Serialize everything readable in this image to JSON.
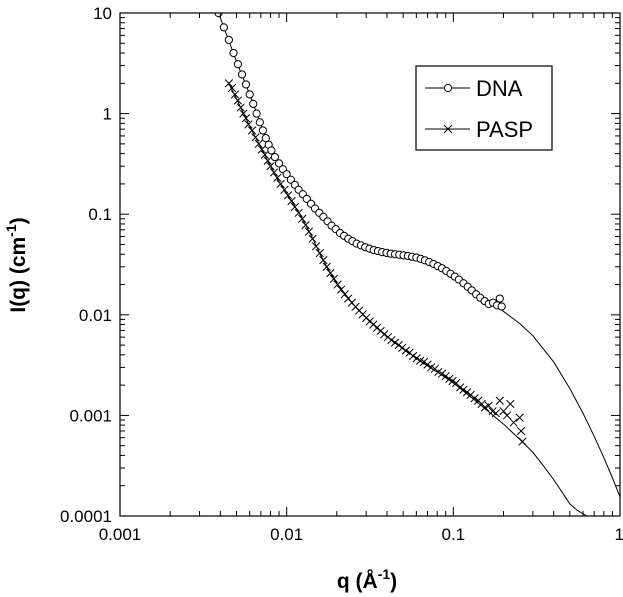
{
  "chart_data": {
    "type": "scatter",
    "title": "",
    "xlabel_base": "q  (Å",
    "xlabel_exp": "-1",
    "xlabel_end": ")",
    "ylabel_base": "I(q)  (cm",
    "ylabel_exp": "-1",
    "ylabel_end": ")",
    "xscale": "log",
    "yscale": "log",
    "xlim": [
      0.001,
      1
    ],
    "ylim": [
      0.0001,
      10
    ],
    "x_ticks": [
      {
        "value": 0.001,
        "label": "0.001"
      },
      {
        "value": 0.01,
        "label": "0.01"
      },
      {
        "value": 0.1,
        "label": "0.1"
      },
      {
        "value": 1,
        "label": "1"
      }
    ],
    "y_ticks": [
      {
        "value": 0.0001,
        "label": "0.0001"
      },
      {
        "value": 0.001,
        "label": "0.001"
      },
      {
        "value": 0.01,
        "label": "0.01"
      },
      {
        "value": 0.1,
        "label": "0.1"
      },
      {
        "value": 1,
        "label": "1"
      },
      {
        "value": 10,
        "label": "10"
      }
    ],
    "grid": false,
    "legend_position": "top-right",
    "series": [
      {
        "name": "DNA",
        "marker": "circle",
        "points": [
          [
            0.0039,
            10.0
          ],
          [
            0.0042,
            7.2
          ],
          [
            0.0045,
            5.4
          ],
          [
            0.0048,
            4.0
          ],
          [
            0.0051,
            3.1
          ],
          [
            0.0054,
            2.45
          ],
          [
            0.0057,
            1.95
          ],
          [
            0.006,
            1.55
          ],
          [
            0.0063,
            1.25
          ],
          [
            0.0066,
            1.0
          ],
          [
            0.0069,
            0.82
          ],
          [
            0.0072,
            0.68
          ],
          [
            0.0075,
            0.57
          ],
          [
            0.0078,
            0.49
          ],
          [
            0.0081,
            0.43
          ],
          [
            0.0085,
            0.37
          ],
          [
            0.009,
            0.32
          ],
          [
            0.0095,
            0.28
          ],
          [
            0.01,
            0.25
          ],
          [
            0.0106,
            0.22
          ],
          [
            0.0112,
            0.196
          ],
          [
            0.0118,
            0.175
          ],
          [
            0.0125,
            0.158
          ],
          [
            0.0132,
            0.142
          ],
          [
            0.014,
            0.127
          ],
          [
            0.0148,
            0.114
          ],
          [
            0.0157,
            0.103
          ],
          [
            0.0166,
            0.094
          ],
          [
            0.0176,
            0.085
          ],
          [
            0.0186,
            0.077
          ],
          [
            0.0197,
            0.071
          ],
          [
            0.0209,
            0.065
          ],
          [
            0.0221,
            0.061
          ],
          [
            0.0234,
            0.057
          ],
          [
            0.0248,
            0.054
          ],
          [
            0.0263,
            0.051
          ],
          [
            0.0279,
            0.049
          ],
          [
            0.0296,
            0.047
          ],
          [
            0.0314,
            0.0455
          ],
          [
            0.0333,
            0.044
          ],
          [
            0.0353,
            0.043
          ],
          [
            0.0374,
            0.042
          ],
          [
            0.0397,
            0.0413
          ],
          [
            0.0421,
            0.0405
          ],
          [
            0.0447,
            0.04
          ],
          [
            0.0474,
            0.0395
          ],
          [
            0.0503,
            0.039
          ],
          [
            0.0534,
            0.0384
          ],
          [
            0.0566,
            0.0377
          ],
          [
            0.06,
            0.037
          ],
          [
            0.0637,
            0.036
          ],
          [
            0.0675,
            0.0348
          ],
          [
            0.0716,
            0.0335
          ],
          [
            0.076,
            0.032
          ],
          [
            0.0806,
            0.0305
          ],
          [
            0.0855,
            0.029
          ],
          [
            0.0907,
            0.0273
          ],
          [
            0.0962,
            0.0256
          ],
          [
            0.102,
            0.024
          ],
          [
            0.108,
            0.0224
          ],
          [
            0.115,
            0.0206
          ],
          [
            0.122,
            0.019
          ],
          [
            0.129,
            0.0175
          ],
          [
            0.137,
            0.016
          ],
          [
            0.145,
            0.0148
          ],
          [
            0.154,
            0.0137
          ],
          [
            0.163,
            0.0128
          ],
          [
            0.173,
            0.0132
          ],
          [
            0.183,
            0.0124
          ],
          [
            0.19,
            0.0145
          ],
          [
            0.195,
            0.0121
          ]
        ],
        "fit": [
          [
            0.0039,
            10.0
          ],
          [
            0.005,
            3.3
          ],
          [
            0.006,
            1.55
          ],
          [
            0.007,
            0.78
          ],
          [
            0.008,
            0.45
          ],
          [
            0.009,
            0.32
          ],
          [
            0.01,
            0.25
          ],
          [
            0.012,
            0.18
          ],
          [
            0.014,
            0.127
          ],
          [
            0.017,
            0.089
          ],
          [
            0.02,
            0.07
          ],
          [
            0.025,
            0.054
          ],
          [
            0.03,
            0.047
          ],
          [
            0.035,
            0.043
          ],
          [
            0.04,
            0.041
          ],
          [
            0.05,
            0.039
          ],
          [
            0.06,
            0.037
          ],
          [
            0.07,
            0.034
          ],
          [
            0.08,
            0.0307
          ],
          [
            0.1,
            0.0246
          ],
          [
            0.12,
            0.0195
          ],
          [
            0.15,
            0.0145
          ],
          [
            0.18,
            0.0123
          ],
          [
            0.2,
            0.0108
          ],
          [
            0.25,
            0.0082
          ],
          [
            0.3,
            0.0062
          ],
          [
            0.4,
            0.0034
          ],
          [
            0.5,
            0.00185
          ],
          [
            0.6,
            0.00105
          ],
          [
            0.7,
            0.00062
          ],
          [
            0.8,
            0.00038
          ],
          [
            0.9,
            0.00024
          ],
          [
            1.0,
            0.000155
          ]
        ]
      },
      {
        "name": "PASP",
        "marker": "x",
        "points": [
          [
            0.0045,
            2.0
          ],
          [
            0.0047,
            1.8
          ],
          [
            0.0049,
            1.55
          ],
          [
            0.0051,
            1.35
          ],
          [
            0.0053,
            1.15
          ],
          [
            0.0055,
            1.0
          ],
          [
            0.0057,
            0.9
          ],
          [
            0.0059,
            0.78
          ],
          [
            0.0062,
            0.68
          ],
          [
            0.0065,
            0.58
          ],
          [
            0.0068,
            0.5
          ],
          [
            0.0071,
            0.44
          ],
          [
            0.0074,
            0.39
          ],
          [
            0.0077,
            0.34
          ],
          [
            0.008,
            0.3
          ],
          [
            0.0084,
            0.26
          ],
          [
            0.0088,
            0.23
          ],
          [
            0.0092,
            0.2
          ],
          [
            0.0097,
            0.175
          ],
          [
            0.0102,
            0.154
          ],
          [
            0.0107,
            0.135
          ],
          [
            0.0112,
            0.118
          ],
          [
            0.0118,
            0.103
          ],
          [
            0.0124,
            0.09
          ],
          [
            0.013,
            0.078
          ],
          [
            0.0136,
            0.067
          ],
          [
            0.0143,
            0.057
          ],
          [
            0.015,
            0.048
          ],
          [
            0.0158,
            0.041
          ],
          [
            0.0166,
            0.035
          ],
          [
            0.0174,
            0.03
          ],
          [
            0.0183,
            0.026
          ],
          [
            0.0192,
            0.0228
          ],
          [
            0.0202,
            0.02
          ],
          [
            0.0212,
            0.0178
          ],
          [
            0.0223,
            0.016
          ],
          [
            0.0234,
            0.0145
          ],
          [
            0.0246,
            0.0132
          ],
          [
            0.0259,
            0.012
          ],
          [
            0.0272,
            0.011
          ],
          [
            0.0286,
            0.0101
          ],
          [
            0.03,
            0.0093
          ],
          [
            0.0315,
            0.0086
          ],
          [
            0.0331,
            0.008
          ],
          [
            0.0348,
            0.0074
          ],
          [
            0.0366,
            0.0069
          ],
          [
            0.0385,
            0.0064
          ],
          [
            0.0405,
            0.006
          ],
          [
            0.0425,
            0.0056
          ],
          [
            0.0447,
            0.0053
          ],
          [
            0.047,
            0.005
          ],
          [
            0.0494,
            0.0047
          ],
          [
            0.0519,
            0.0044
          ],
          [
            0.0546,
            0.0042
          ],
          [
            0.0574,
            0.0039
          ],
          [
            0.0603,
            0.0037
          ],
          [
            0.0634,
            0.0035
          ],
          [
            0.0666,
            0.0034
          ],
          [
            0.07,
            0.0032
          ],
          [
            0.0736,
            0.003
          ],
          [
            0.0774,
            0.0029
          ],
          [
            0.0813,
            0.0027
          ],
          [
            0.0855,
            0.0026
          ],
          [
            0.0899,
            0.00245
          ],
          [
            0.0945,
            0.0023
          ],
          [
            0.099,
            0.0022
          ],
          [
            0.104,
            0.0021
          ],
          [
            0.11,
            0.0019
          ],
          [
            0.115,
            0.0018
          ],
          [
            0.121,
            0.0017
          ],
          [
            0.127,
            0.0016
          ],
          [
            0.134,
            0.00148
          ],
          [
            0.141,
            0.0014
          ],
          [
            0.148,
            0.0013
          ],
          [
            0.155,
            0.0012
          ],
          [
            0.163,
            0.00125
          ],
          [
            0.172,
            0.0011
          ],
          [
            0.18,
            0.00105
          ],
          [
            0.19,
            0.0014
          ],
          [
            0.2,
            0.0011
          ],
          [
            0.21,
            0.001
          ],
          [
            0.22,
            0.0013
          ],
          [
            0.23,
            0.00085
          ],
          [
            0.25,
            0.00095
          ],
          [
            0.255,
            0.0007
          ],
          [
            0.26,
            0.00055
          ]
        ],
        "fit": [
          [
            0.0045,
            2.0
          ],
          [
            0.005,
            1.4
          ],
          [
            0.006,
            0.75
          ],
          [
            0.007,
            0.46
          ],
          [
            0.008,
            0.3
          ],
          [
            0.009,
            0.21
          ],
          [
            0.01,
            0.16
          ],
          [
            0.012,
            0.1
          ],
          [
            0.014,
            0.062
          ],
          [
            0.016,
            0.039
          ],
          [
            0.018,
            0.027
          ],
          [
            0.02,
            0.0205
          ],
          [
            0.025,
            0.0128
          ],
          [
            0.03,
            0.0094
          ],
          [
            0.04,
            0.0061
          ],
          [
            0.05,
            0.0046
          ],
          [
            0.06,
            0.0037
          ],
          [
            0.07,
            0.0031
          ],
          [
            0.08,
            0.0027
          ],
          [
            0.1,
            0.0021
          ],
          [
            0.12,
            0.00165
          ],
          [
            0.15,
            0.00122
          ],
          [
            0.2,
            0.00082
          ],
          [
            0.25,
            0.00058
          ],
          [
            0.3,
            0.00043
          ],
          [
            0.35,
            0.00031
          ],
          [
            0.4,
            0.00023
          ],
          [
            0.45,
            0.000172
          ],
          [
            0.5,
            0.000132
          ],
          [
            0.55,
            0.000115
          ],
          [
            0.63,
            0.0001
          ]
        ]
      }
    ]
  }
}
